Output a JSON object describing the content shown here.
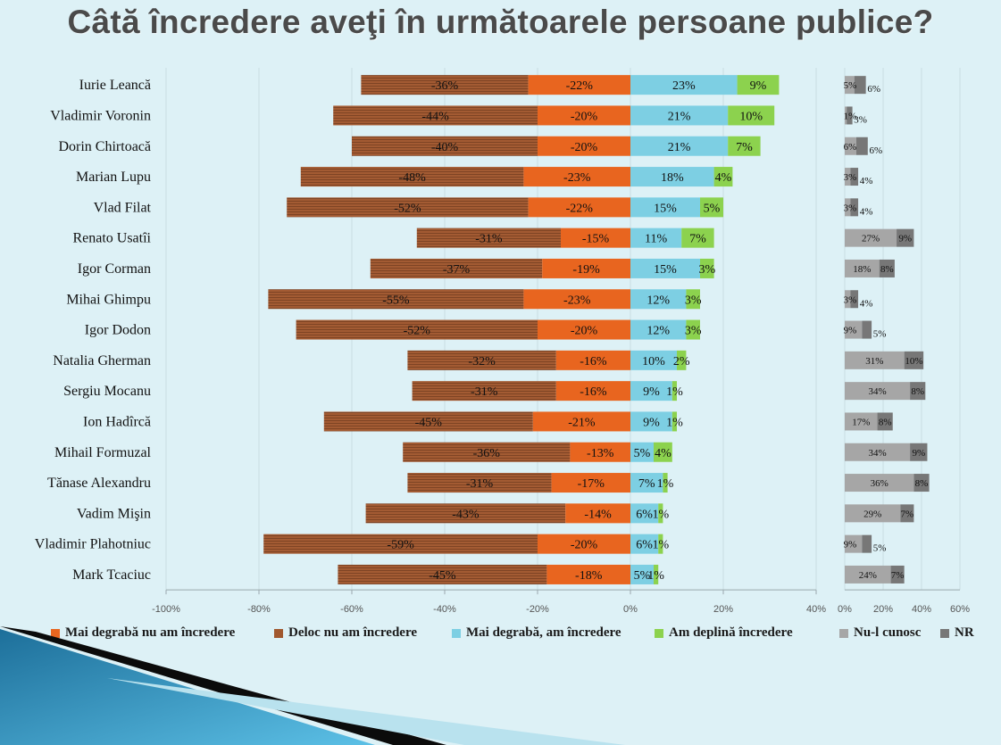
{
  "title": "Câtă încredere aveţi în următoarele persoane publice?",
  "colors": {
    "deloc": "#a0582f",
    "mai_degraba_nu": "#e8651f",
    "mai_degraba_da": "#7dcfe3",
    "deplina": "#8cd24e",
    "nu_cunosc": "#a6a6a6",
    "nr": "#777777"
  },
  "legend": {
    "mai_degraba_nu": "Mai degrabă nu am încredere",
    "deloc": "Deloc nu am încredere",
    "mai_degraba_da": "Mai degrabă, am încredere",
    "deplina": "Am deplină încredere",
    "nu_cunosc": "Nu-l cunosc",
    "nr": "NR"
  },
  "chart_data": [
    {
      "type": "bar",
      "orientation": "horizontal",
      "stacked": "diverging",
      "categories": [
        "Iurie Leancă",
        "Vladimir Voronin",
        "Dorin Chirtoacă",
        "Marian Lupu",
        "Vlad Filat",
        "Renato Usatîi",
        "Igor Corman",
        "Mihai Ghimpu",
        "Igor Dodon",
        "Natalia Gherman",
        "Sergiu Mocanu",
        "Ion Hadîrcă",
        "Mihail Formuzal",
        "Tănase Alexandru",
        "Vadim Mişin",
        "Vladimir Plahotniuc",
        "Mark Tcaciuc"
      ],
      "series": [
        {
          "name": "Deloc nu am încredere",
          "key": "deloc",
          "values": [
            -36,
            -44,
            -40,
            -48,
            -52,
            -31,
            -37,
            -55,
            -52,
            -32,
            -31,
            -45,
            -36,
            -31,
            -43,
            -59,
            -45
          ]
        },
        {
          "name": "Mai degrabă nu am încredere",
          "key": "mai_degraba_nu",
          "values": [
            -22,
            -20,
            -20,
            -23,
            -22,
            -15,
            -19,
            -23,
            -20,
            -16,
            -16,
            -21,
            -13,
            -17,
            -14,
            -20,
            -18
          ]
        },
        {
          "name": "Mai degrabă, am încredere",
          "key": "mai_degraba_da",
          "values": [
            23,
            21,
            21,
            18,
            15,
            11,
            15,
            12,
            12,
            10,
            9,
            9,
            5,
            7,
            6,
            6,
            5
          ]
        },
        {
          "name": "Am deplină încredere",
          "key": "deplina",
          "values": [
            9,
            10,
            7,
            4,
            5,
            7,
            3,
            3,
            3,
            2,
            1,
            1,
            4,
            1,
            1,
            1,
            1
          ]
        }
      ],
      "xlim": [
        -100,
        40
      ],
      "xticks": [
        "-100%",
        "-80%",
        "-60%",
        "-40%",
        "-20%",
        "0%",
        "20%",
        "40%"
      ],
      "grid": true
    },
    {
      "type": "bar",
      "orientation": "horizontal",
      "stacked": true,
      "categories": [
        "Iurie Leancă",
        "Vladimir Voronin",
        "Dorin Chirtoacă",
        "Marian Lupu",
        "Vlad Filat",
        "Renato Usatîi",
        "Igor Corman",
        "Mihai Ghimpu",
        "Igor Dodon",
        "Natalia Gherman",
        "Sergiu Mocanu",
        "Ion Hadîrcă",
        "Mihail Formuzal",
        "Tănase Alexandru",
        "Vadim Mişin",
        "Vladimir Plahotniuc",
        "Mark Tcaciuc"
      ],
      "series": [
        {
          "name": "Nu-l cunosc",
          "key": "nu_cunosc",
          "values": [
            5,
            1,
            6,
            3,
            3,
            27,
            18,
            3,
            9,
            31,
            34,
            17,
            34,
            36,
            29,
            9,
            24
          ]
        },
        {
          "name": "NR",
          "key": "nr",
          "values": [
            6,
            3,
            6,
            4,
            4,
            9,
            8,
            4,
            5,
            10,
            8,
            8,
            9,
            8,
            7,
            5,
            7
          ]
        }
      ],
      "xlim": [
        0,
        60
      ],
      "xticks": [
        "0%",
        "20%",
        "40%",
        "60%"
      ],
      "grid": true
    }
  ]
}
